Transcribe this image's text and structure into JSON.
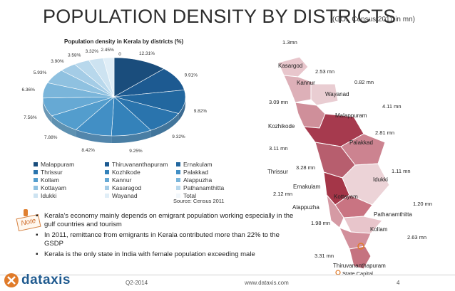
{
  "header": {
    "title": "POPULATION DENSITY BY DISTRICTS",
    "subtitle": "(GOI, Census 2011,in mn)"
  },
  "chart_data": {
    "type": "pie",
    "title": "Population density in Kerala by districts (%)",
    "source": "Source: Census 2011",
    "legend_position": "bottom",
    "slices": [
      {
        "label": "Malappuram",
        "value": 12.31,
        "display": "12.31%",
        "color": "#1a4d7c"
      },
      {
        "label": "Thiruvananthapuram",
        "value": 9.91,
        "display": "9.91%",
        "color": "#1d5a91"
      },
      {
        "label": "Ernakulam",
        "value": 9.82,
        "display": "9.82%",
        "color": "#22679f"
      },
      {
        "label": "Thrissur",
        "value": 9.32,
        "display": "9.32%",
        "color": "#2a74ad"
      },
      {
        "label": "Kozhikode",
        "value": 9.25,
        "display": "9.25%",
        "color": "#3482ba"
      },
      {
        "label": "Palakkad",
        "value": 8.42,
        "display": "8.42%",
        "color": "#428fc5"
      },
      {
        "label": "Kollam",
        "value": 7.88,
        "display": "7.88%",
        "color": "#539dcd"
      },
      {
        "label": "Kannur",
        "value": 7.56,
        "display": "7.56%",
        "color": "#66a9d4"
      },
      {
        "label": "Alappuzha",
        "value": 6.36,
        "display": "6.36%",
        "color": "#7ab5da"
      },
      {
        "label": "Kottayam",
        "value": 5.93,
        "display": "5.93%",
        "color": "#8fc1e0"
      },
      {
        "label": "Kasaragod",
        "value": 3.9,
        "display": "3.90%",
        "color": "#a4cce6"
      },
      {
        "label": "Pathanamthitta",
        "value": 3.58,
        "display": "3.58%",
        "color": "#b8d8ec"
      },
      {
        "label": "Idukki",
        "value": 3.32,
        "display": "3.32%",
        "color": "#cde3f1"
      },
      {
        "label": "Wayanad",
        "value": 2.45,
        "display": "2.45%",
        "color": "#e0eef7"
      },
      {
        "label": "Total",
        "value": 0,
        "display": "0",
        "color": "#f2f7fb"
      }
    ]
  },
  "map": {
    "state_capital_label": "State Capital",
    "districts": [
      {
        "name": "Kasargod",
        "pop": "1.3mn"
      },
      {
        "name": "Kannur",
        "pop": "2.53 mn"
      },
      {
        "name": "Wayanad",
        "pop": "0.82 mn"
      },
      {
        "name": "Kozhikode",
        "pop": "3.09 mn"
      },
      {
        "name": "Malappuram",
        "pop": "4.11 mn"
      },
      {
        "name": "Palakkad",
        "pop": "2.81 mn"
      },
      {
        "name": "Thrissur",
        "pop": "3.11 mn"
      },
      {
        "name": "Ernakulam",
        "pop": "3.28 mn"
      },
      {
        "name": "Idukki",
        "pop": "1.11 mn"
      },
      {
        "name": "Kottayam",
        "pop": ""
      },
      {
        "name": "Alappuzha",
        "pop": "2.12 mn"
      },
      {
        "name": "Pathanamthitta",
        "pop": "1.20 mn"
      },
      {
        "name": "Kollam",
        "pop": "2.63 mn"
      },
      {
        "name": "Thiruvananthapuram",
        "pop": "3.31 mn"
      }
    ],
    "extra_pop": "1.98 mn"
  },
  "note": {
    "tag": "Note",
    "bullets": [
      "Kerala's economy mainly depends on emigrant population working especially in the gulf countries and tourism",
      "In 2011, remittance from emigrants in Kerala contributed more than 22% to the GSDP",
      "Kerala is the only state in India with female population exceeding male"
    ]
  },
  "footer": {
    "logo": "dataxis",
    "period": "Q2-2014",
    "website": "www.dataxis.com",
    "page": "4"
  }
}
